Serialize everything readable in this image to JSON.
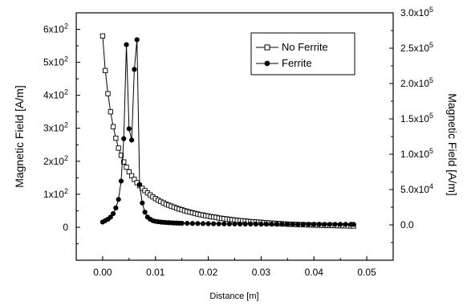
{
  "chart_data": {
    "type": "line",
    "xlabel": "Distance [m]",
    "ylabel_left": "Magnetic Field [A/m]",
    "ylabel_right": "Magnetic Field [A/m]",
    "xlim": [
      -0.005,
      0.055
    ],
    "ylim_left": [
      -100,
      650
    ],
    "ylim_right": [
      -50000,
      300000
    ],
    "x_ticks": [
      {
        "value": 0.0,
        "label": "0.00"
      },
      {
        "value": 0.01,
        "label": "0.01"
      },
      {
        "value": 0.02,
        "label": "0.02"
      },
      {
        "value": 0.03,
        "label": "0.03"
      },
      {
        "value": 0.04,
        "label": "0.04"
      },
      {
        "value": 0.05,
        "label": "0.05"
      }
    ],
    "y_left_ticks": [
      {
        "value": 0,
        "base": "0",
        "exp": ""
      },
      {
        "value": 100,
        "base": "1x10",
        "exp": "2"
      },
      {
        "value": 200,
        "base": "2x10",
        "exp": "2"
      },
      {
        "value": 300,
        "base": "3x10",
        "exp": "2"
      },
      {
        "value": 400,
        "base": "4x10",
        "exp": "2"
      },
      {
        "value": 500,
        "base": "5x10",
        "exp": "2"
      },
      {
        "value": 600,
        "base": "6x10",
        "exp": "2"
      }
    ],
    "y_right_ticks": [
      {
        "value": 0,
        "base": "0.0",
        "exp": ""
      },
      {
        "value": 50000,
        "base": "5.0x10",
        "exp": "4"
      },
      {
        "value": 100000,
        "base": "1.0x10",
        "exp": "5"
      },
      {
        "value": 150000,
        "base": "1.5x10",
        "exp": "5"
      },
      {
        "value": 200000,
        "base": "2.0x10",
        "exp": "5"
      },
      {
        "value": 250000,
        "base": "2.5x10",
        "exp": "5"
      },
      {
        "value": 300000,
        "base": "3.0x10",
        "exp": "5"
      }
    ],
    "legend_position": "top-right",
    "series": [
      {
        "name": "No Ferrite",
        "axis": "left",
        "marker": "open-square",
        "x": [
          0.0,
          0.0005,
          0.001,
          0.0015,
          0.002,
          0.0025,
          0.003,
          0.0035,
          0.004,
          0.0045,
          0.005,
          0.0055,
          0.006,
          0.0065,
          0.007,
          0.0075,
          0.008,
          0.0085,
          0.009,
          0.0095,
          0.01,
          0.0105,
          0.011,
          0.0115,
          0.012,
          0.0125,
          0.013,
          0.0135,
          0.014,
          0.0145,
          0.015,
          0.0155,
          0.016,
          0.0165,
          0.017,
          0.0175,
          0.018,
          0.0185,
          0.019,
          0.0195,
          0.02,
          0.0205,
          0.021,
          0.0215,
          0.022,
          0.0225,
          0.023,
          0.0235,
          0.024,
          0.0245,
          0.025,
          0.0255,
          0.026,
          0.0265,
          0.027,
          0.0275,
          0.028,
          0.0285,
          0.029,
          0.0295,
          0.03,
          0.0305,
          0.031,
          0.0315,
          0.032,
          0.0325,
          0.033,
          0.0335,
          0.034,
          0.0345,
          0.035,
          0.0355,
          0.036,
          0.0365,
          0.037,
          0.0375,
          0.038,
          0.0385,
          0.039,
          0.0395,
          0.04,
          0.0405,
          0.041,
          0.0415,
          0.042,
          0.0425,
          0.043,
          0.0435,
          0.044,
          0.0445,
          0.045,
          0.0455,
          0.046,
          0.0465,
          0.047,
          0.0475
        ],
        "y": [
          580,
          475,
          405,
          350,
          305,
          270,
          240,
          218,
          198,
          182,
          168,
          156,
          145,
          135,
          126,
          118,
          111,
          104,
          98,
          92,
          87,
          82,
          78,
          74,
          70,
          67,
          64,
          61,
          58,
          55,
          53,
          50,
          48,
          46,
          44,
          42,
          40,
          38,
          37,
          35,
          34,
          32,
          31,
          30,
          28,
          27,
          26,
          25,
          24,
          23,
          22,
          21,
          20,
          19.5,
          19,
          18,
          17,
          16.5,
          16,
          15.5,
          15,
          14,
          13.5,
          13,
          12.5,
          12,
          11.5,
          11,
          10.5,
          10,
          9.5,
          9,
          8.8,
          8.5,
          8.2,
          8,
          7.6,
          7.3,
          7,
          6.8,
          6.5,
          6.2,
          6,
          5.8,
          5.6,
          5.4,
          5.2,
          5,
          4.8,
          4.6,
          4.4,
          4.2,
          4,
          3.8,
          3.6,
          3.5
        ]
      },
      {
        "name": "Ferrite",
        "axis": "right",
        "marker": "filled-circle",
        "x": [
          0.0,
          0.0005,
          0.001,
          0.0015,
          0.002,
          0.0025,
          0.003,
          0.0035,
          0.004,
          0.0045,
          0.005,
          0.0055,
          0.006,
          0.0065,
          0.007,
          0.0075,
          0.008,
          0.0085,
          0.009,
          0.0095,
          0.01,
          0.0105,
          0.011,
          0.0115,
          0.012,
          0.0125,
          0.013,
          0.0135,
          0.014,
          0.0145,
          0.015,
          0.016,
          0.017,
          0.018,
          0.019,
          0.02,
          0.021,
          0.022,
          0.023,
          0.024,
          0.025,
          0.026,
          0.027,
          0.028,
          0.029,
          0.03,
          0.031,
          0.032,
          0.033,
          0.034,
          0.035,
          0.036,
          0.037,
          0.038,
          0.039,
          0.04,
          0.041,
          0.042,
          0.043,
          0.044,
          0.045,
          0.046,
          0.047,
          0.0475
        ],
        "y": [
          4000,
          6000,
          8000,
          11000,
          16000,
          24000,
          36000,
          62000,
          122000,
          255000,
          136000,
          120000,
          220000,
          262000,
          57000,
          31000,
          18000,
          11000,
          8000,
          6000,
          5000,
          4500,
          4000,
          3600,
          3300,
          3100,
          2900,
          2700,
          2550,
          2400,
          2300,
          2150,
          2000,
          1900,
          1800,
          1700,
          1600,
          1500,
          1450,
          1400,
          1350,
          1300,
          1250,
          1200,
          1150,
          1100,
          1050,
          1000,
          980,
          960,
          940,
          920,
          900,
          880,
          860,
          840,
          820,
          800,
          780,
          760,
          740,
          720,
          700,
          690
        ]
      }
    ]
  }
}
